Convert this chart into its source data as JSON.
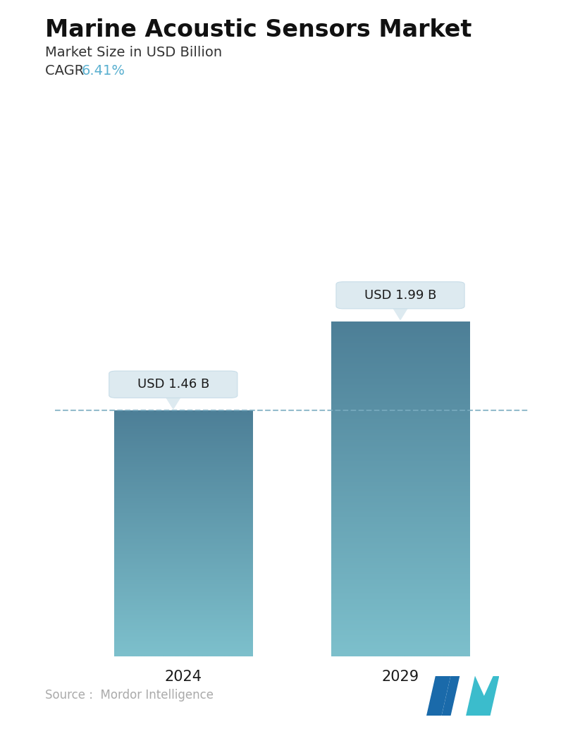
{
  "title": "Marine Acoustic Sensors Market",
  "subtitle": "Market Size in USD Billion",
  "cagr_label": "CAGR ",
  "cagr_value": "6.41%",
  "cagr_color": "#5ab0d0",
  "categories": [
    "2024",
    "2029"
  ],
  "values": [
    1.46,
    1.99
  ],
  "bar_labels": [
    "USD 1.46 B",
    "USD 1.99 B"
  ],
  "bar_top_hex": [
    "#4d7f97",
    "#4d7f97"
  ],
  "bar_bottom_hex": [
    "#7dc0cc",
    "#7dc0cc"
  ],
  "dashed_line_color": "#7aacc0",
  "dashed_line_value": 1.46,
  "source_text": "Source :  Mordor Intelligence",
  "source_color": "#aaaaaa",
  "background_color": "#ffffff",
  "title_fontsize": 24,
  "subtitle_fontsize": 14,
  "cagr_fontsize": 14,
  "bar_label_fontsize": 13,
  "axis_label_fontsize": 15,
  "source_fontsize": 12,
  "ylim": [
    0,
    2.6
  ],
  "box_facecolor": "#ddeaf0",
  "box_edgecolor": "#c8dde8"
}
